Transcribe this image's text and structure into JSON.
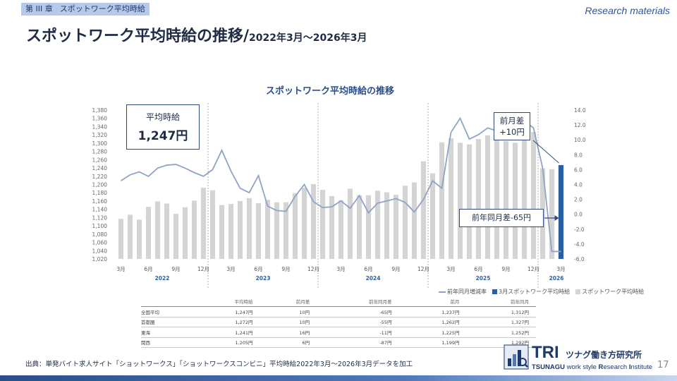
{
  "header": {
    "chapter": "第 III 章",
    "chapter_section": "スポットワーク平均時給",
    "research_label": "Research materials",
    "title_main": "スポットワーク平均時給の推移/",
    "title_sub": "2022年3月～2026年3月"
  },
  "kpi": {
    "label": "平均時給",
    "value": "1,247円"
  },
  "annotations": {
    "mom_line1": "前月差",
    "mom_line2": "+10円",
    "yoy": "前年同月差-65円"
  },
  "legend": {
    "line": "前年同月増減率",
    "current": "3月スポットワーク平均時給",
    "bars": "スポットワーク平均時給"
  },
  "colors": {
    "bar": "#d4d4d4",
    "highlight_bar": "#2b5fa3",
    "line": "#8ea3c7",
    "accent": "#2e4a7a"
  },
  "chart_data": {
    "type": "bar",
    "title": "スポットワーク平均時給の推移",
    "y_left": {
      "ylim": [
        1020,
        1380
      ],
      "ticks": [
        "1,020",
        "1,040",
        "1,060",
        "1,080",
        "1,100",
        "1,120",
        "1,140",
        "1,160",
        "1,180",
        "1,200",
        "1,220",
        "1,240",
        "1,260",
        "1,280",
        "1,300",
        "1,320",
        "1,340",
        "1,360",
        "1,380"
      ]
    },
    "y_right": {
      "ylim": [
        -6,
        14
      ],
      "ticks": [
        "-6.0",
        "-4.0",
        "-2.0",
        "0.0",
        "2.0",
        "4.0",
        "6.0",
        "8.0",
        "10.0",
        "12.0",
        "14.0"
      ]
    },
    "x_tick_labels": [
      "3月",
      "6月",
      "9月",
      "12月",
      "3月",
      "6月",
      "9月",
      "12月",
      "3月",
      "6月",
      "9月",
      "12月",
      "3月",
      "6月",
      "9月",
      "12月",
      "3月"
    ],
    "year_labels": [
      "2022",
      "2023",
      "2024",
      "2025",
      "2026"
    ],
    "bar_values": [
      1117,
      1127,
      1115,
      1146,
      1159,
      1154,
      1129,
      1145,
      1161,
      1192,
      1186,
      1150,
      1153,
      1160,
      1167,
      1155,
      1163,
      1157,
      1157,
      1179,
      1192,
      1201,
      1187,
      1172,
      1162,
      1190,
      1174,
      1174,
      1185,
      1181,
      1175,
      1197,
      1205,
      1256,
      1227,
      1302,
      1312,
      1301,
      1297,
      1310,
      1319,
      1312,
      1305,
      1301,
      1308,
      1327,
      1239,
      1237,
      1247
    ],
    "highlight_index": 48,
    "line_values": [
      4.5,
      5.3,
      5.7,
      5.1,
      6.2,
      6.6,
      6.7,
      6.2,
      5.6,
      5.1,
      6.0,
      8.6,
      5.8,
      3.5,
      2.9,
      5.2,
      1.1,
      0.5,
      0.4,
      2.4,
      4.0,
      1.7,
      0.9,
      1.0,
      1.8,
      0.8,
      2.5,
      0.2,
      1.5,
      1.8,
      2.1,
      1.6,
      0.3,
      2.0,
      4.5,
      3.5,
      11.0,
      12.9,
      10.1,
      10.7,
      11.6,
      11.2,
      10.3,
      10.0,
      12.5,
      11.6,
      6.2,
      -5.0,
      -5.0
    ]
  },
  "table": {
    "headers": [
      "",
      "平均時給",
      "前月差",
      "前年同月差",
      "前月",
      "前年同月"
    ],
    "rows": [
      [
        "全国平均",
        "1,247円",
        "10円",
        "-65円",
        "1,237円",
        "1,312円"
      ],
      [
        "首都圏",
        "1,272円",
        "10円",
        "-55円",
        "1,262円",
        "1,327円"
      ],
      [
        "東海",
        "1,241円",
        "16円",
        "-11円",
        "1,225円",
        "1,252円"
      ],
      [
        "関西",
        "1,205円",
        "6円",
        "-87円",
        "1,199円",
        "1,292円"
      ]
    ]
  },
  "footer": {
    "source": "出典：単発バイト求人サイト「ショットワークス」「ショットワークスコンビニ」平均時給2022年3月～2026年3月データを加工",
    "page_number": "17"
  },
  "logo": {
    "brand": "TRI",
    "jp": "ツナグ働き方研究所",
    "en_bold1": "TSUNAGU",
    "en_mid": " work style ",
    "en_bold2": "R",
    "en_tail1": "esearch ",
    "en_bold3": "I",
    "en_tail2": "nstitute"
  }
}
